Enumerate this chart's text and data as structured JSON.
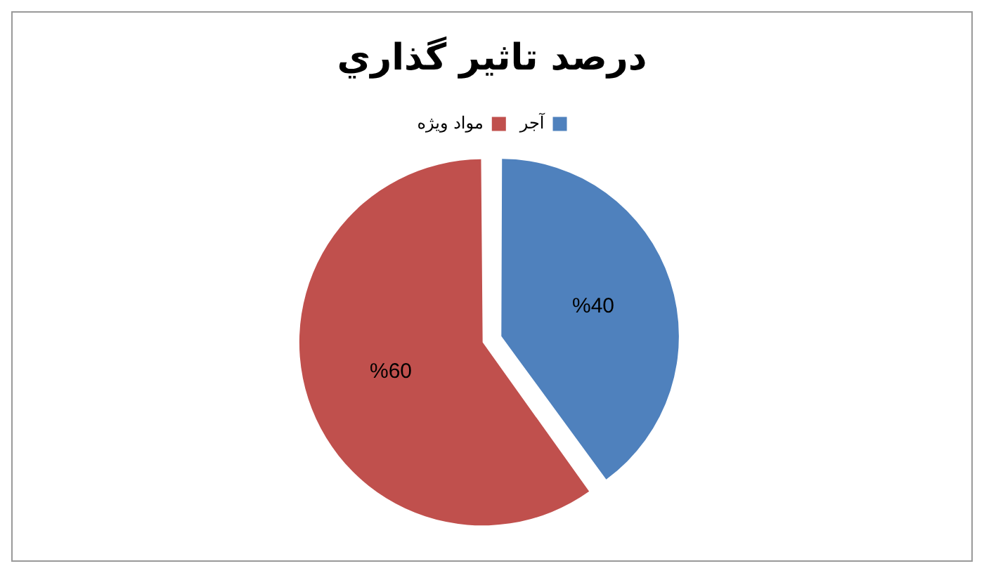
{
  "chart_data": {
    "type": "pie",
    "title": "درصد تاثير گذاري",
    "categories": [
      "آجر",
      "مواد ويژه"
    ],
    "values": [
      40,
      60
    ],
    "colors": [
      "#4f81bd",
      "#c0504d"
    ],
    "value_labels": [
      "%40",
      "%60"
    ],
    "legend": "top"
  }
}
